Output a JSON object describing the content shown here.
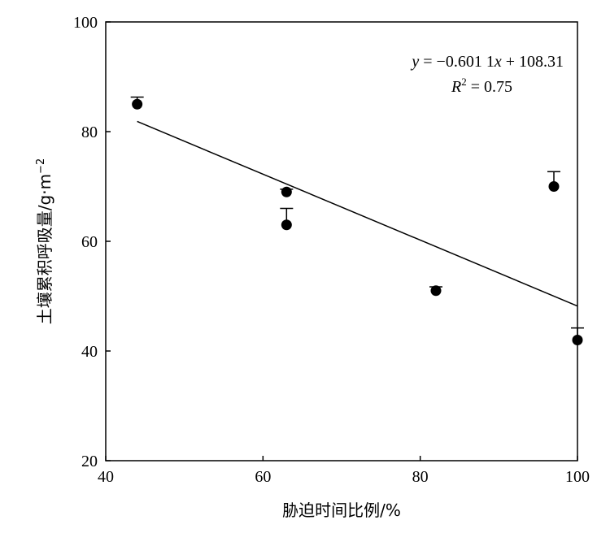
{
  "chart_data": {
    "type": "scatter",
    "xlabel": "胁迫时间比例/%",
    "ylabel": "土壤累积呼吸量/g·m",
    "ylabel_sup": "−2",
    "xlim": [
      40,
      100
    ],
    "ylim": [
      20,
      100
    ],
    "xticks": [
      "40",
      "60",
      "80",
      "100"
    ],
    "yticks": [
      "20",
      "40",
      "60",
      "80",
      "100"
    ],
    "grid": false,
    "points": [
      {
        "x": 44,
        "y": 85,
        "err_up": 1.3
      },
      {
        "x": 63,
        "y": 69,
        "err_up": 0.5
      },
      {
        "x": 63,
        "y": 63,
        "err_up": 3.0
      },
      {
        "x": 82,
        "y": 51,
        "err_up": 0.7
      },
      {
        "x": 97,
        "y": 70,
        "err_up": 2.7
      },
      {
        "x": 100,
        "y": 42,
        "err_up": 2.2
      }
    ],
    "fit": {
      "slope": -0.6011,
      "intercept": 108.31,
      "x_start": 44,
      "x_end": 100
    },
    "equation": {
      "y_var": "y",
      "eq_rest_a": " = −0.601 1",
      "x_var": "x",
      "eq_rest_b": " + 108.31",
      "r_var": "R",
      "r_sup": "2",
      "r_rest": " = 0.75"
    }
  }
}
